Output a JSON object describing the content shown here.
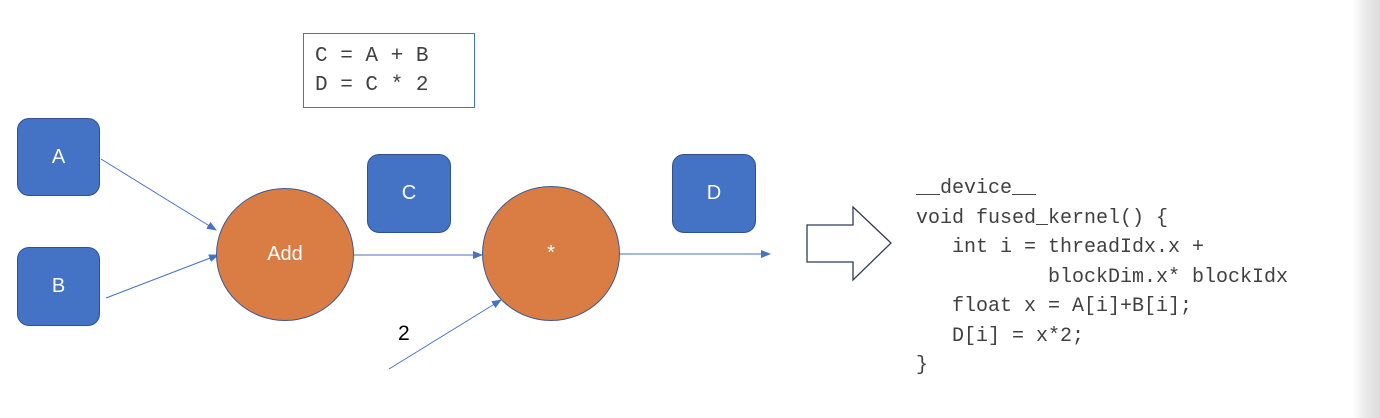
{
  "equations": {
    "line1": "C = A + B",
    "line2": "D = C * 2"
  },
  "nodes": {
    "a": "A",
    "b": "B",
    "c": "C",
    "d": "D"
  },
  "ops": {
    "add": "Add",
    "mul": "*"
  },
  "constant": "2",
  "code": [
    "__device__",
    "void fused_kernel() {",
    "   int i = threadIdx.x +",
    "           blockDim.x* blockIdx",
    "   float x = A[i]+B[i];",
    "   D[i] = x*2;",
    "}"
  ],
  "colors": {
    "tensor_node": "#4472c4",
    "op_node": "#d97d45",
    "wire": "#4472c4"
  }
}
